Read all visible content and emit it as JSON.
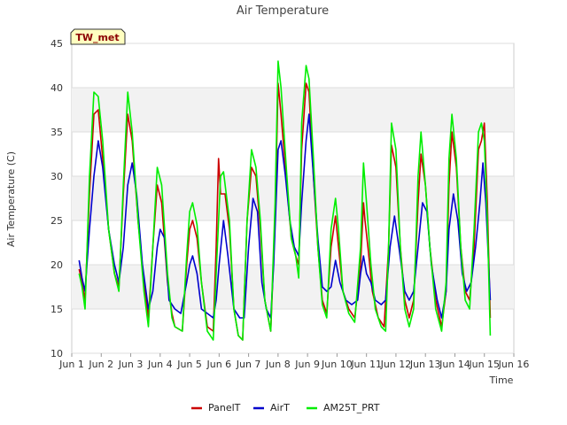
{
  "chart_data": {
    "type": "line",
    "title": "Air Temperature",
    "xlabel": "Time",
    "ylabel": "Air Temperature (C)",
    "station_label": "TW_met",
    "xlim": [
      1,
      16
    ],
    "ylim": [
      10,
      45
    ],
    "x_ticks": [
      1,
      2,
      3,
      4,
      5,
      6,
      7,
      8,
      9,
      10,
      11,
      12,
      13,
      14,
      15,
      16
    ],
    "x_tick_labels": [
      "Jun 1",
      "Jun 2",
      "Jun 3",
      "Jun 4",
      "Jun 5",
      "Jun 6",
      "Jun 7",
      "Jun 8",
      "Jun 9",
      "Jun 10",
      "Jun 11",
      "Jun 12",
      "Jun 13",
      "Jun 14",
      "Jun 15",
      "Jun 16"
    ],
    "y_ticks": [
      10,
      15,
      20,
      25,
      30,
      35,
      40,
      45
    ],
    "bands": [
      [
        15,
        20
      ],
      [
        25,
        30
      ],
      [
        35,
        40
      ]
    ],
    "grid": true,
    "legend_position": "bottom",
    "series": [
      {
        "name": "PanelT",
        "color": "#cc0000",
        "points": [
          [
            1.25,
            19.5
          ],
          [
            1.35,
            18
          ],
          [
            1.45,
            16
          ],
          [
            1.6,
            28
          ],
          [
            1.75,
            37
          ],
          [
            1.9,
            37.5
          ],
          [
            2.05,
            32
          ],
          [
            2.25,
            24
          ],
          [
            2.45,
            19
          ],
          [
            2.6,
            17.5
          ],
          [
            2.75,
            28
          ],
          [
            2.9,
            37
          ],
          [
            3.05,
            34
          ],
          [
            3.25,
            25
          ],
          [
            3.45,
            18
          ],
          [
            3.6,
            14
          ],
          [
            3.75,
            22
          ],
          [
            3.9,
            29
          ],
          [
            4.05,
            27
          ],
          [
            4.25,
            18
          ],
          [
            4.4,
            14.5
          ],
          [
            4.5,
            13
          ],
          [
            4.75,
            12.5
          ],
          [
            4.9,
            20
          ],
          [
            5.0,
            24
          ],
          [
            5.1,
            25
          ],
          [
            5.25,
            23
          ],
          [
            5.4,
            18
          ],
          [
            5.6,
            13
          ],
          [
            5.8,
            12.5
          ],
          [
            5.9,
            22
          ],
          [
            5.98,
            32
          ],
          [
            6.05,
            28
          ],
          [
            6.2,
            28
          ],
          [
            6.35,
            24
          ],
          [
            6.5,
            15
          ],
          [
            6.65,
            12
          ],
          [
            6.8,
            11.5
          ],
          [
            6.95,
            25
          ],
          [
            7.1,
            31
          ],
          [
            7.25,
            30
          ],
          [
            7.4,
            24
          ],
          [
            7.55,
            16
          ],
          [
            7.75,
            12.5
          ],
          [
            7.9,
            25
          ],
          [
            8.0,
            40.5
          ],
          [
            8.1,
            37
          ],
          [
            8.3,
            29
          ],
          [
            8.45,
            23
          ],
          [
            8.6,
            21
          ],
          [
            8.7,
            20
          ],
          [
            8.8,
            33
          ],
          [
            8.95,
            40.5
          ],
          [
            9.05,
            39.5
          ],
          [
            9.2,
            30
          ],
          [
            9.35,
            22
          ],
          [
            9.5,
            16
          ],
          [
            9.65,
            14.5
          ],
          [
            9.8,
            22
          ],
          [
            9.95,
            25.5
          ],
          [
            10.05,
            22
          ],
          [
            10.2,
            17
          ],
          [
            10.4,
            15
          ],
          [
            10.6,
            14
          ],
          [
            10.8,
            20
          ],
          [
            10.9,
            27
          ],
          [
            10.95,
            25
          ],
          [
            11.05,
            22
          ],
          [
            11.2,
            17
          ],
          [
            11.4,
            14
          ],
          [
            11.6,
            13
          ],
          [
            11.75,
            22
          ],
          [
            11.85,
            33.5
          ],
          [
            12.0,
            31
          ],
          [
            12.15,
            22
          ],
          [
            12.3,
            16
          ],
          [
            12.45,
            14
          ],
          [
            12.6,
            16
          ],
          [
            12.75,
            27
          ],
          [
            12.85,
            32.5
          ],
          [
            13.0,
            29
          ],
          [
            13.15,
            22
          ],
          [
            13.35,
            16
          ],
          [
            13.55,
            13
          ],
          [
            13.7,
            17
          ],
          [
            13.8,
            29
          ],
          [
            13.9,
            35
          ],
          [
            14.05,
            31
          ],
          [
            14.2,
            22
          ],
          [
            14.35,
            17
          ],
          [
            14.5,
            16
          ],
          [
            14.65,
            22
          ],
          [
            14.8,
            33
          ],
          [
            14.9,
            34
          ],
          [
            15.0,
            36
          ],
          [
            15.1,
            27
          ],
          [
            15.2,
            14
          ]
        ]
      },
      {
        "name": "AirT",
        "color": "#0000cc",
        "points": [
          [
            1.25,
            20.5
          ],
          [
            1.35,
            18.5
          ],
          [
            1.45,
            17
          ],
          [
            1.6,
            24
          ],
          [
            1.75,
            30
          ],
          [
            1.9,
            34
          ],
          [
            2.05,
            31
          ],
          [
            2.25,
            24
          ],
          [
            2.45,
            20
          ],
          [
            2.6,
            18
          ],
          [
            2.75,
            22
          ],
          [
            2.9,
            29
          ],
          [
            3.05,
            31.5
          ],
          [
            3.2,
            28
          ],
          [
            3.4,
            20
          ],
          [
            3.6,
            15
          ],
          [
            3.75,
            17
          ],
          [
            3.9,
            22
          ],
          [
            4.0,
            24
          ],
          [
            4.15,
            23
          ],
          [
            4.3,
            16
          ],
          [
            4.5,
            15
          ],
          [
            4.7,
            14.5
          ],
          [
            4.9,
            18
          ],
          [
            5.0,
            20
          ],
          [
            5.1,
            21
          ],
          [
            5.25,
            19
          ],
          [
            5.4,
            15
          ],
          [
            5.6,
            14.5
          ],
          [
            5.8,
            14
          ],
          [
            5.9,
            16
          ],
          [
            6.0,
            20
          ],
          [
            6.15,
            25
          ],
          [
            6.3,
            21
          ],
          [
            6.5,
            15
          ],
          [
            6.7,
            14
          ],
          [
            6.85,
            14
          ],
          [
            7.0,
            22
          ],
          [
            7.15,
            27.5
          ],
          [
            7.3,
            26
          ],
          [
            7.45,
            18
          ],
          [
            7.6,
            15
          ],
          [
            7.75,
            14
          ],
          [
            7.85,
            20
          ],
          [
            8.0,
            33
          ],
          [
            8.1,
            34
          ],
          [
            8.25,
            30
          ],
          [
            8.4,
            25
          ],
          [
            8.55,
            22
          ],
          [
            8.7,
            21
          ],
          [
            8.8,
            27
          ],
          [
            8.95,
            34
          ],
          [
            9.05,
            37
          ],
          [
            9.2,
            30
          ],
          [
            9.35,
            23
          ],
          [
            9.5,
            17.5
          ],
          [
            9.65,
            17
          ],
          [
            9.8,
            17.5
          ],
          [
            9.95,
            20.5
          ],
          [
            10.1,
            18
          ],
          [
            10.3,
            16
          ],
          [
            10.5,
            15.5
          ],
          [
            10.7,
            16
          ],
          [
            10.8,
            19
          ],
          [
            10.9,
            21
          ],
          [
            11.0,
            19
          ],
          [
            11.15,
            18
          ],
          [
            11.3,
            16
          ],
          [
            11.5,
            15.5
          ],
          [
            11.65,
            16
          ],
          [
            11.8,
            22
          ],
          [
            11.95,
            25.5
          ],
          [
            12.1,
            22
          ],
          [
            12.3,
            17
          ],
          [
            12.45,
            16
          ],
          [
            12.6,
            17
          ],
          [
            12.75,
            22
          ],
          [
            12.9,
            27
          ],
          [
            13.05,
            26
          ],
          [
            13.2,
            20
          ],
          [
            13.4,
            16
          ],
          [
            13.55,
            14
          ],
          [
            13.7,
            17
          ],
          [
            13.8,
            24
          ],
          [
            13.95,
            28
          ],
          [
            14.1,
            25
          ],
          [
            14.25,
            19
          ],
          [
            14.4,
            17
          ],
          [
            14.55,
            18
          ],
          [
            14.7,
            22
          ],
          [
            14.85,
            27
          ],
          [
            14.95,
            31.5
          ],
          [
            15.05,
            27
          ],
          [
            15.2,
            16
          ]
        ]
      },
      {
        "name": "AM25T_PRT",
        "color": "#00ee00",
        "points": [
          [
            1.25,
            19
          ],
          [
            1.35,
            17.5
          ],
          [
            1.45,
            15
          ],
          [
            1.6,
            30
          ],
          [
            1.75,
            39.5
          ],
          [
            1.9,
            39
          ],
          [
            2.05,
            34
          ],
          [
            2.25,
            24
          ],
          [
            2.45,
            19
          ],
          [
            2.6,
            17
          ],
          [
            2.75,
            29
          ],
          [
            2.9,
            39.5
          ],
          [
            3.05,
            35
          ],
          [
            3.25,
            25
          ],
          [
            3.45,
            17
          ],
          [
            3.6,
            13
          ],
          [
            3.75,
            22
          ],
          [
            3.9,
            31
          ],
          [
            4.05,
            29
          ],
          [
            4.25,
            19
          ],
          [
            4.4,
            14
          ],
          [
            4.5,
            13
          ],
          [
            4.75,
            12.5
          ],
          [
            4.9,
            21
          ],
          [
            5.0,
            26
          ],
          [
            5.1,
            27
          ],
          [
            5.25,
            24.5
          ],
          [
            5.4,
            18
          ],
          [
            5.6,
            12.5
          ],
          [
            5.8,
            11.5
          ],
          [
            5.9,
            19
          ],
          [
            6.05,
            30
          ],
          [
            6.15,
            30.5
          ],
          [
            6.35,
            25
          ],
          [
            6.5,
            15
          ],
          [
            6.65,
            12
          ],
          [
            6.8,
            11.5
          ],
          [
            6.95,
            25
          ],
          [
            7.1,
            33
          ],
          [
            7.25,
            31
          ],
          [
            7.4,
            25
          ],
          [
            7.55,
            16
          ],
          [
            7.75,
            12.5
          ],
          [
            7.9,
            27
          ],
          [
            8.0,
            43
          ],
          [
            8.1,
            40
          ],
          [
            8.3,
            30
          ],
          [
            8.45,
            23
          ],
          [
            8.6,
            21
          ],
          [
            8.7,
            18.5
          ],
          [
            8.8,
            36
          ],
          [
            8.95,
            42.5
          ],
          [
            9.05,
            41
          ],
          [
            9.2,
            32
          ],
          [
            9.35,
            22
          ],
          [
            9.5,
            15.5
          ],
          [
            9.65,
            14
          ],
          [
            9.8,
            24
          ],
          [
            9.95,
            27.5
          ],
          [
            10.05,
            24
          ],
          [
            10.2,
            17
          ],
          [
            10.4,
            14.5
          ],
          [
            10.6,
            13.5
          ],
          [
            10.8,
            22
          ],
          [
            10.9,
            31.5
          ],
          [
            11.0,
            27
          ],
          [
            11.15,
            20
          ],
          [
            11.3,
            15
          ],
          [
            11.5,
            13
          ],
          [
            11.65,
            12.5
          ],
          [
            11.75,
            22
          ],
          [
            11.85,
            36
          ],
          [
            12.0,
            33
          ],
          [
            12.15,
            22
          ],
          [
            12.3,
            15
          ],
          [
            12.45,
            13
          ],
          [
            12.6,
            15
          ],
          [
            12.75,
            30
          ],
          [
            12.85,
            35
          ],
          [
            13.0,
            29
          ],
          [
            13.15,
            22
          ],
          [
            13.35,
            15
          ],
          [
            13.55,
            12.5
          ],
          [
            13.7,
            18
          ],
          [
            13.8,
            32
          ],
          [
            13.9,
            37
          ],
          [
            14.05,
            32
          ],
          [
            14.2,
            22
          ],
          [
            14.35,
            16
          ],
          [
            14.5,
            15
          ],
          [
            14.65,
            24
          ],
          [
            14.8,
            35
          ],
          [
            14.9,
            36
          ],
          [
            15.0,
            34
          ],
          [
            15.1,
            25
          ],
          [
            15.2,
            12
          ]
        ]
      }
    ]
  }
}
